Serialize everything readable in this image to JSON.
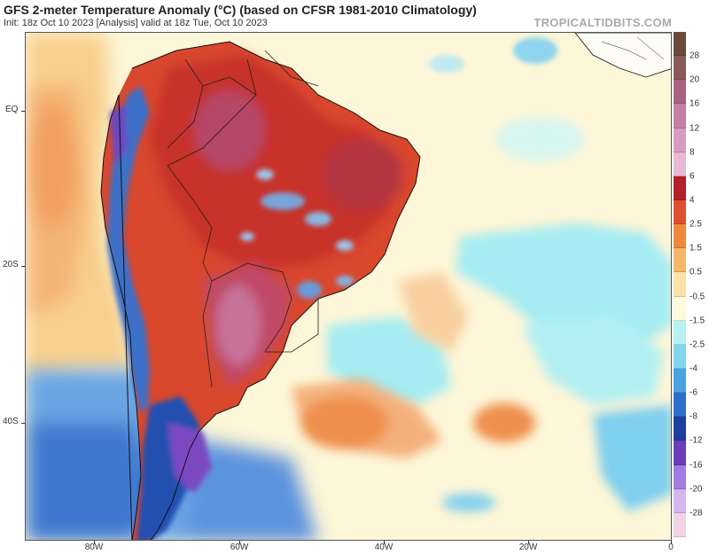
{
  "header": {
    "title": "GFS 2-meter Temperature Anomaly (°C) (based on CFSR 1981-2010 Climatology)",
    "subtitle": "Init: 18z Oct 10 2023   [Analysis]   valid at 18z Tue, Oct 10 2023",
    "brand": "TROPICALTIDBITS.COM"
  },
  "axes": {
    "lat_labels": [
      "EQ",
      "20S",
      "40S"
    ],
    "lon_labels": [
      "80W",
      "60W",
      "40W",
      "20W",
      "0"
    ]
  },
  "colorbar": {
    "labels": [
      "28",
      "20",
      "16",
      "12",
      "8",
      "6",
      "4",
      "2.5",
      "1.5",
      "0.5",
      "-0.5",
      "-1.5",
      "-2.5",
      "-4",
      "-6",
      "-8",
      "-12",
      "-16",
      "-20",
      "-28"
    ],
    "colors": [
      "#6b4a3a",
      "#8a5a5a",
      "#a8627e",
      "#c47fa6",
      "#d99ac2",
      "#e7b9d5",
      "#b2202a",
      "#e05030",
      "#f0883a",
      "#f6b76a",
      "#fbe3a8",
      "#fdfadc",
      "#b6f2f0",
      "#7fd6ee",
      "#4aa3e0",
      "#2f6fcc",
      "#1e3fa0",
      "#6b3db8",
      "#a47be0",
      "#d7b6ef",
      "#f2d3e6"
    ]
  },
  "map": {
    "colors": {
      "ocean_neutral": "#fdf6d8",
      "warm_land": "#d94a2e",
      "hot_land": "#b8384f",
      "very_hot": "#c4708f",
      "cool_ocean": "#98e6f0",
      "cold_south": "#4f8fdc",
      "very_cold": "#1f4aa8",
      "purple_cold": "#7b48c2",
      "warm_ocean": "#f3a462",
      "coast": "#111111"
    }
  }
}
